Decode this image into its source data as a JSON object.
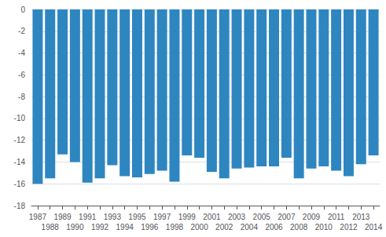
{
  "chart_data": {
    "type": "bar",
    "categories": [
      1987,
      1988,
      1989,
      1990,
      1991,
      1992,
      1993,
      1994,
      1995,
      1996,
      1997,
      1998,
      1999,
      2000,
      2001,
      2002,
      2003,
      2004,
      2005,
      2006,
      2007,
      2008,
      2009,
      2010,
      2011,
      2012,
      2013,
      2014
    ],
    "values": [
      -16.0,
      -15.5,
      -13.3,
      -14.0,
      -15.9,
      -15.5,
      -14.3,
      -15.3,
      -15.4,
      -15.1,
      -14.8,
      -15.8,
      -13.4,
      -13.6,
      -14.9,
      -15.5,
      -14.6,
      -14.5,
      -14.4,
      -14.4,
      -13.6,
      -15.5,
      -14.6,
      -14.4,
      -14.8,
      -15.3,
      -14.2,
      -13.4
    ],
    "color": "#2e86c0",
    "ylim": [
      -18,
      0
    ],
    "yticks": [
      0,
      -2,
      -4,
      -6,
      -8,
      -10,
      -12,
      -14,
      -16,
      -18
    ],
    "grid": true
  }
}
